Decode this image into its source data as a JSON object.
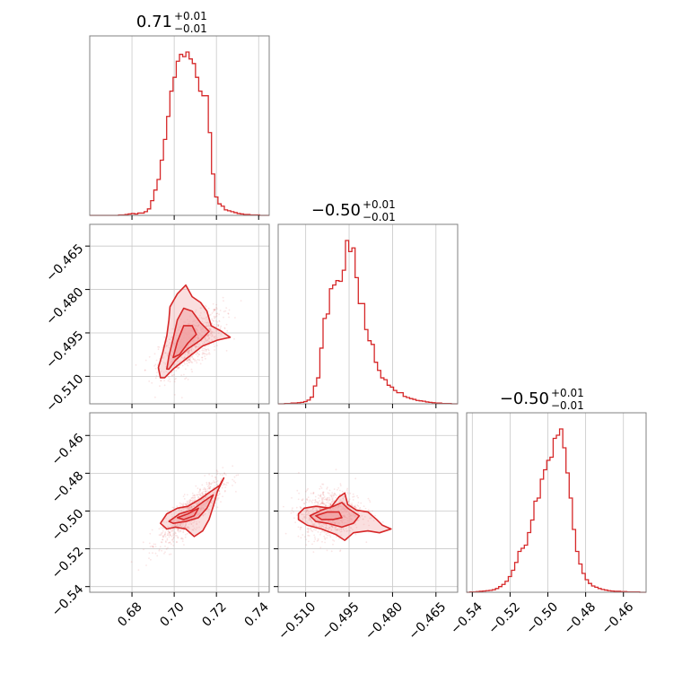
{
  "chart_data": {
    "type": "corner",
    "color": "#d62728",
    "contour_fill": "#f1a3a4",
    "grid": true,
    "parameter_titles": [
      {
        "value": "0.71",
        "plus": "+0.01",
        "minus": "−0.01"
      },
      {
        "value": "−0.50",
        "plus": "+0.01",
        "minus": "−0.01"
      },
      {
        "value": "−0.50",
        "plus": "+0.01",
        "minus": "−0.01"
      }
    ],
    "parameters": [
      {
        "range": [
          0.66,
          0.745
        ],
        "ticks": [
          0.68,
          0.7,
          0.72,
          0.74
        ],
        "tick_labels": [
          "0.68",
          "0.70",
          "0.72",
          "0.74"
        ],
        "hist_range": [
          0.66,
          0.745
        ],
        "hist": [
          0,
          0,
          0,
          0,
          0,
          0,
          0,
          0,
          0,
          1,
          1,
          2,
          3,
          4,
          3,
          5,
          5,
          8,
          14,
          32,
          55,
          78,
          120,
          165,
          215,
          270,
          300,
          335,
          350,
          345,
          355,
          340,
          330,
          300,
          270,
          260,
          260,
          180,
          90,
          40,
          25,
          20,
          12,
          10,
          8,
          6,
          4,
          3,
          2,
          2,
          1,
          1,
          1,
          0,
          0,
          0
        ]
      },
      {
        "range": [
          -0.5195,
          -0.4575
        ],
        "ticks": [
          -0.51,
          -0.495,
          -0.48,
          -0.465
        ],
        "tick_labels": [
          "−0.510",
          "−0.495",
          "−0.480",
          "−0.465"
        ],
        "hist_range": [
          -0.5195,
          -0.4575
        ],
        "hist": [
          0,
          0,
          1,
          1,
          2,
          2,
          3,
          4,
          6,
          10,
          18,
          48,
          70,
          150,
          230,
          242,
          310,
          320,
          332,
          330,
          360,
          440,
          410,
          420,
          340,
          270,
          270,
          200,
          170,
          160,
          112,
          90,
          70,
          65,
          50,
          45,
          36,
          30,
          30,
          20,
          17,
          14,
          12,
          9,
          8,
          7,
          5,
          4,
          3,
          2,
          2,
          1,
          1,
          1,
          0,
          0
        ]
      },
      {
        "range": [
          -0.543,
          -0.448
        ],
        "ticks": [
          -0.54,
          -0.52,
          -0.5,
          -0.48,
          -0.46
        ],
        "tick_labels": [
          "−0.54",
          "−0.52",
          "−0.50",
          "−0.48",
          "−0.46"
        ],
        "hist_range": [
          -0.543,
          -0.448
        ],
        "hist": [
          0,
          1,
          1,
          2,
          3,
          4,
          5,
          6,
          8,
          12,
          18,
          25,
          35,
          50,
          70,
          95,
          130,
          140,
          150,
          190,
          230,
          290,
          300,
          360,
          390,
          420,
          430,
          490,
          500,
          520,
          460,
          380,
          300,
          200,
          130,
          90,
          60,
          40,
          28,
          20,
          16,
          12,
          9,
          7,
          5,
          4,
          3,
          3,
          2,
          2,
          1,
          1,
          1,
          1,
          0,
          0
        ]
      }
    ],
    "pairs": [
      {
        "row": 1,
        "col": 0,
        "scatter_center": [
          0.708,
          -0.4985
        ],
        "scatter_spread": [
          0.0075,
          0.0055
        ],
        "correlation": 0.65,
        "contours": [
          [
            [
              0.6935,
              -0.5105
            ],
            [
              0.6925,
              -0.507
            ],
            [
              0.6945,
              -0.502
            ],
            [
              0.6965,
              -0.496
            ],
            [
              0.6975,
              -0.4905
            ],
            [
              0.698,
              -0.486
            ],
            [
              0.7015,
              -0.4815
            ],
            [
              0.7055,
              -0.4785
            ],
            [
              0.7085,
              -0.4825
            ],
            [
              0.7125,
              -0.4845
            ],
            [
              0.7155,
              -0.4875
            ],
            [
              0.7175,
              -0.4925
            ],
            [
              0.7225,
              -0.4945
            ],
            [
              0.7265,
              -0.4965
            ],
            [
              0.7205,
              -0.4975
            ],
            [
              0.7135,
              -0.4995
            ],
            [
              0.7065,
              -0.5035
            ],
            [
              0.6995,
              -0.5075
            ],
            [
              0.6955,
              -0.5105
            ]
          ],
          [
            [
              0.6965,
              -0.5075
            ],
            [
              0.6975,
              -0.503
            ],
            [
              0.6995,
              -0.497
            ],
            [
              0.7015,
              -0.4905
            ],
            [
              0.7045,
              -0.4865
            ],
            [
              0.7085,
              -0.4875
            ],
            [
              0.7125,
              -0.4915
            ],
            [
              0.7165,
              -0.4945
            ],
            [
              0.7125,
              -0.4975
            ],
            [
              0.7065,
              -0.5005
            ],
            [
              0.7005,
              -0.5045
            ],
            [
              0.6975,
              -0.5075
            ]
          ],
          [
            [
              0.6995,
              -0.5035
            ],
            [
              0.7015,
              -0.498
            ],
            [
              0.7045,
              -0.4925
            ],
            [
              0.7085,
              -0.4925
            ],
            [
              0.7105,
              -0.4955
            ],
            [
              0.7065,
              -0.4985
            ],
            [
              0.7025,
              -0.5025
            ],
            [
              0.6995,
              -0.5035
            ]
          ]
        ]
      },
      {
        "row": 2,
        "col": 0,
        "scatter_center": [
          0.708,
          -0.5005
        ],
        "scatter_spread": [
          0.0075,
          0.0085
        ],
        "correlation": 0.85,
        "contours": [
          [
            [
              0.6935,
              -0.5065
            ],
            [
              0.6965,
              -0.5015
            ],
            [
              0.7015,
              -0.4985
            ],
            [
              0.7065,
              -0.4975
            ],
            [
              0.7125,
              -0.4935
            ],
            [
              0.7175,
              -0.4895
            ],
            [
              0.7215,
              -0.4865
            ],
            [
              0.7235,
              -0.4825
            ],
            [
              0.7205,
              -0.4895
            ],
            [
              0.7185,
              -0.4975
            ],
            [
              0.7165,
              -0.5045
            ],
            [
              0.7135,
              -0.5105
            ],
            [
              0.7095,
              -0.5135
            ],
            [
              0.7055,
              -0.5095
            ],
            [
              0.7005,
              -0.5085
            ],
            [
              0.6965,
              -0.5095
            ],
            [
              0.6935,
              -0.5065
            ]
          ],
          [
            [
              0.6975,
              -0.5055
            ],
            [
              0.7025,
              -0.5015
            ],
            [
              0.7085,
              -0.4995
            ],
            [
              0.7145,
              -0.4945
            ],
            [
              0.7185,
              -0.4915
            ],
            [
              0.7155,
              -0.4985
            ],
            [
              0.7115,
              -0.5035
            ],
            [
              0.7055,
              -0.5055
            ],
            [
              0.6995,
              -0.5065
            ],
            [
              0.6975,
              -0.5055
            ]
          ],
          [
            [
              0.7015,
              -0.5035
            ],
            [
              0.7065,
              -0.5015
            ],
            [
              0.7115,
              -0.4985
            ],
            [
              0.7095,
              -0.5025
            ],
            [
              0.7045,
              -0.5045
            ],
            [
              0.7015,
              -0.5035
            ]
          ]
        ]
      },
      {
        "row": 2,
        "col": 1,
        "scatter_center": [
          -0.5015,
          -0.5015
        ],
        "scatter_spread": [
          0.0055,
          0.0065
        ],
        "correlation": 0.1,
        "contours": [
          [
            [
              -0.5125,
              -0.5015
            ],
            [
              -0.5105,
              -0.4985
            ],
            [
              -0.5065,
              -0.4975
            ],
            [
              -0.5015,
              -0.4985
            ],
            [
              -0.4985,
              -0.4925
            ],
            [
              -0.4965,
              -0.4905
            ],
            [
              -0.4955,
              -0.4965
            ],
            [
              -0.4925,
              -0.4995
            ],
            [
              -0.4885,
              -0.5005
            ],
            [
              -0.4855,
              -0.5045
            ],
            [
              -0.4835,
              -0.5075
            ],
            [
              -0.4805,
              -0.5095
            ],
            [
              -0.4845,
              -0.5115
            ],
            [
              -0.4885,
              -0.5105
            ],
            [
              -0.4935,
              -0.5115
            ],
            [
              -0.4965,
              -0.5155
            ],
            [
              -0.4995,
              -0.5125
            ],
            [
              -0.5045,
              -0.5095
            ],
            [
              -0.5095,
              -0.5075
            ],
            [
              -0.5125,
              -0.5045
            ],
            [
              -0.5125,
              -0.5015
            ]
          ],
          [
            [
              -0.5085,
              -0.5025
            ],
            [
              -0.5045,
              -0.4995
            ],
            [
              -0.5005,
              -0.4975
            ],
            [
              -0.4975,
              -0.4955
            ],
            [
              -0.4955,
              -0.4985
            ],
            [
              -0.4915,
              -0.5025
            ],
            [
              -0.4935,
              -0.5065
            ],
            [
              -0.4975,
              -0.5085
            ],
            [
              -0.5025,
              -0.5065
            ],
            [
              -0.5065,
              -0.5055
            ],
            [
              -0.5085,
              -0.5025
            ]
          ],
          [
            [
              -0.5065,
              -0.5025
            ],
            [
              -0.5025,
              -0.5005
            ],
            [
              -0.4985,
              -0.5005
            ],
            [
              -0.4975,
              -0.5035
            ],
            [
              -0.5005,
              -0.5045
            ],
            [
              -0.5045,
              -0.5045
            ],
            [
              -0.5065,
              -0.5025
            ]
          ]
        ]
      }
    ]
  }
}
